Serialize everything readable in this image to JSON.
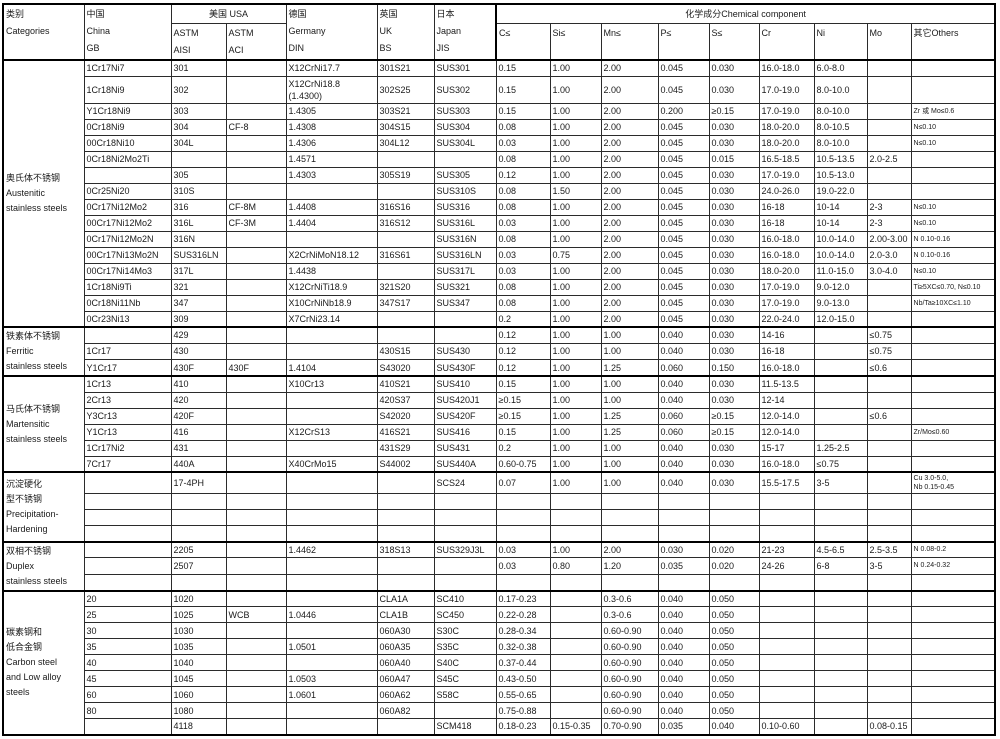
{
  "header": {
    "category": "类别\nCategories",
    "china": "中国\nChina\nGB",
    "usa": "美国 USA",
    "usa_sub": [
      "ASTM\nAISI",
      "ASTM\nACI"
    ],
    "germany": "德国\nGermany\nDIN",
    "uk": "英国\nUK\nBS",
    "japan": "日本\nJapan\nJIS",
    "chem_group": "化学成分Chemical component",
    "chem_cols": [
      "C≤",
      "Si≤",
      "Mn≤",
      "P≤",
      "S≤",
      "Cr",
      "Ni",
      "Mo",
      "其它Others"
    ]
  },
  "groups": [
    {
      "category": [
        "奥氏体不锈钢",
        "Austenitic",
        "stainless steels"
      ],
      "rows": [
        [
          "1Cr17Ni7",
          "301",
          "",
          "X12CrNi17.7",
          "301S21",
          "SUS301",
          "0.15",
          "1.00",
          "2.00",
          "0.045",
          "0.030",
          "16.0-18.0",
          "6.0-8.0",
          "",
          ""
        ],
        [
          "1Cr18Ni9",
          "302",
          "",
          "X12CrNi18.8\n(1.4300)",
          "302S25",
          "SUS302",
          "0.15",
          "1.00",
          "2.00",
          "0.045",
          "0.030",
          "17.0-19.0",
          "8.0-10.0",
          "",
          ""
        ],
        [
          "Y1Cr18Ni9",
          "303",
          "",
          "1.4305",
          "303S21",
          "SUS303",
          "0.15",
          "1.00",
          "2.00",
          "0.200",
          "≥0.15",
          "17.0-19.0",
          "8.0-10.0",
          "",
          "Zr 或 Mo≤0.6"
        ],
        [
          "0Cr18Ni9",
          "304",
          "CF-8",
          "1.4308",
          "304S15",
          "SUS304",
          "0.08",
          "1.00",
          "2.00",
          "0.045",
          "0.030",
          "18.0-20.0",
          "8.0-10.5",
          "",
          "N≤0.10"
        ],
        [
          "00Cr18Ni10",
          "304L",
          "",
          "1.4306",
          "304L12",
          "SUS304L",
          "0.03",
          "1.00",
          "2.00",
          "0.045",
          "0.030",
          "18.0-20.0",
          "8.0-10.0",
          "",
          "N≤0.10"
        ],
        [
          "0Cr18Ni2Mo2Ti",
          "",
          "",
          "1.4571",
          "",
          "",
          "0.08",
          "1.00",
          "2.00",
          "0.045",
          "0.015",
          "16.5-18.5",
          "10.5-13.5",
          "2.0-2.5",
          ""
        ],
        [
          "",
          "305",
          "",
          "1.4303",
          "305S19",
          "SUS305",
          "0.12",
          "1.00",
          "2.00",
          "0.045",
          "0.030",
          "17.0-19.0",
          "10.5-13.0",
          "",
          ""
        ],
        [
          "0Cr25Ni20",
          "310S",
          "",
          "",
          "",
          "SUS310S",
          "0.08",
          "1.50",
          "2.00",
          "0.045",
          "0.030",
          "24.0-26.0",
          "19.0-22.0",
          "",
          ""
        ],
        [
          "0Cr17Ni12Mo2",
          "316",
          "CF-8M",
          "1.4408",
          "316S16",
          "SUS316",
          "0.08",
          "1.00",
          "2.00",
          "0.045",
          "0.030",
          "16-18",
          "10-14",
          "2-3",
          "N≤0.10"
        ],
        [
          "00Cr17Ni12Mo2",
          "316L",
          "CF-3M",
          "1.4404",
          "316S12",
          "SUS316L",
          "0.03",
          "1.00",
          "2.00",
          "0.045",
          "0.030",
          "16-18",
          "10-14",
          "2-3",
          "N≤0.10"
        ],
        [
          "0Cr17Ni12Mo2N",
          "316N",
          "",
          "",
          "",
          "SUS316N",
          "0.08",
          "1.00",
          "2.00",
          "0.045",
          "0.030",
          "16.0-18.0",
          "10.0-14.0",
          "2.00-3.00",
          "N 0.10-0.16"
        ],
        [
          "00Cr17Ni13Mo2N",
          "SUS316LN",
          "",
          "X2CrNiMoN18.12",
          "316S61",
          "SUS316LN",
          "0.03",
          "0.75",
          "2.00",
          "0.045",
          "0.030",
          "16.0-18.0",
          "10.0-14.0",
          "2.0-3.0",
          "N 0.10-0.16"
        ],
        [
          "00Cr17Ni14Mo3",
          "317L",
          "",
          "1.4438",
          "",
          "SUS317L",
          "0.03",
          "1.00",
          "2.00",
          "0.045",
          "0.030",
          "18.0-20.0",
          "11.0-15.0",
          "3.0-4.0",
          "N≤0.10"
        ],
        [
          "1Cr18Ni9Ti",
          "321",
          "",
          "X12CrNiTi18.9",
          "321S20",
          "SUS321",
          "0.08",
          "1.00",
          "2.00",
          "0.045",
          "0.030",
          "17.0-19.0",
          "9.0-12.0",
          "",
          "Ti≥5XC≤0.70, N≤0.10"
        ],
        [
          "0Cr18Ni11Nb",
          "347",
          "",
          "X10CrNiNb18.9",
          "347S17",
          "SUS347",
          "0.08",
          "1.00",
          "2.00",
          "0.045",
          "0.030",
          "17.0-19.0",
          "9.0-13.0",
          "",
          "Nb/Ta≥10XC≤1.10"
        ],
        [
          "0Cr23Ni13",
          "309",
          "",
          "X7CrNi23.14",
          "",
          "",
          "0.2",
          "1.00",
          "2.00",
          "0.045",
          "0.030",
          "22.0-24.0",
          "12.0-15.0",
          "",
          ""
        ]
      ]
    },
    {
      "category": [
        "铁素体不锈钢",
        "Ferritic",
        "stainless steels"
      ],
      "rows": [
        [
          "",
          "429",
          "",
          "",
          "",
          "",
          "0.12",
          "1.00",
          "1.00",
          "0.040",
          "0.030",
          "14-16",
          "",
          "≤0.75",
          ""
        ],
        [
          "1Cr17",
          "430",
          "",
          "",
          "430S15",
          "SUS430",
          "0.12",
          "1.00",
          "1.00",
          "0.040",
          "0.030",
          "16-18",
          "",
          "≤0.75",
          ""
        ],
        [
          "Y1Cr17",
          "430F",
          "430F",
          "1.4104",
          "S43020",
          "SUS430F",
          "0.12",
          "1.00",
          "1.25",
          "0.060",
          "0.150",
          "16.0-18.0",
          "",
          "≤0.6",
          ""
        ]
      ]
    },
    {
      "category": [
        "马氏体不锈钢",
        "Martensitic",
        "stainless steels"
      ],
      "rows": [
        [
          "1Cr13",
          "410",
          "",
          "X10Cr13",
          "410S21",
          "SUS410",
          "0.15",
          "1.00",
          "1.00",
          "0.040",
          "0.030",
          "11.5-13.5",
          "",
          "",
          ""
        ],
        [
          "2Cr13",
          "420",
          "",
          "",
          "420S37",
          "SUS420J1",
          "≥0.15",
          "1.00",
          "1.00",
          "0.040",
          "0.030",
          "12-14",
          "",
          "",
          ""
        ],
        [
          "Y3Cr13",
          "420F",
          "",
          "",
          "S42020",
          "SUS420F",
          "≥0.15",
          "1.00",
          "1.25",
          "0.060",
          "≥0.15",
          "12.0-14.0",
          "",
          "≤0.6",
          ""
        ],
        [
          "Y1Cr13",
          "416",
          "",
          "X12CrS13",
          "416S21",
          "SUS416",
          "0.15",
          "1.00",
          "1.25",
          "0.060",
          "≥0.15",
          "12.0-14.0",
          "",
          "",
          "Zr/Mo≤0.60"
        ],
        [
          "1Cr17Ni2",
          "431",
          "",
          "",
          "431S29",
          "SUS431",
          "0.2",
          "1.00",
          "1.00",
          "0.040",
          "0.030",
          "15-17",
          "1.25-2.5",
          "",
          ""
        ],
        [
          "7Cr17",
          "440A",
          "",
          "X40CrMo15",
          "S44002",
          "SUS440A",
          "0.60-0.75",
          "1.00",
          "1.00",
          "0.040",
          "0.030",
          "16.0-18.0",
          "≤0.75",
          "",
          ""
        ]
      ]
    },
    {
      "category": [
        "沉淀硬化",
        "型不锈钢",
        "Precipitation-",
        "Hardening"
      ],
      "rows": [
        [
          "",
          "17-4PH",
          "",
          "",
          "",
          "SCS24",
          "0.07",
          "1.00",
          "1.00",
          "0.040",
          "0.030",
          "15.5-17.5",
          "3-5",
          "",
          "Cu 3.0-5.0,\nNb 0.15-0.45"
        ],
        [
          "",
          "",
          "",
          "",
          "",
          "",
          "",
          "",
          "",
          "",
          "",
          "",
          "",
          "",
          ""
        ],
        [
          "",
          "",
          "",
          "",
          "",
          "",
          "",
          "",
          "",
          "",
          "",
          "",
          "",
          "",
          ""
        ],
        [
          "",
          "",
          "",
          "",
          "",
          "",
          "",
          "",
          "",
          "",
          "",
          "",
          "",
          "",
          ""
        ]
      ]
    },
    {
      "category": [
        "双相不锈钢",
        "Duplex",
        "stainless steels"
      ],
      "rows": [
        [
          "",
          "2205",
          "",
          "1.4462",
          "318S13",
          "SUS329J3L",
          "0.03",
          "1.00",
          "2.00",
          "0.030",
          "0.020",
          "21-23",
          "4.5-6.5",
          "2.5-3.5",
          "N 0.08-0.2"
        ],
        [
          "",
          "2507",
          "",
          "",
          "",
          "",
          "0.03",
          "0.80",
          "1.20",
          "0.035",
          "0.020",
          "24-26",
          "6-8",
          "3-5",
          "N 0.24-0.32"
        ],
        [
          "",
          "",
          "",
          "",
          "",
          "",
          "",
          "",
          "",
          "",
          "",
          "",
          "",
          "",
          ""
        ]
      ]
    },
    {
      "category": [
        "碳素钢和",
        "低合金钢",
        "Carbon steel",
        "and Low alloy",
        "steels"
      ],
      "rows": [
        [
          "20",
          "1020",
          "",
          "",
          "CLA1A",
          "SC410",
          "0.17-0.23",
          "",
          "0.3-0.6",
          "0.040",
          "0.050",
          "",
          "",
          "",
          ""
        ],
        [
          "25",
          "1025",
          "WCB",
          "1.0446",
          "CLA1B",
          "SC450",
          "0.22-0.28",
          "",
          "0.3-0.6",
          "0.040",
          "0.050",
          "",
          "",
          "",
          ""
        ],
        [
          "30",
          "1030",
          "",
          "",
          "060A30",
          "S30C",
          "0.28-0.34",
          "",
          "0.60-0.90",
          "0.040",
          "0.050",
          "",
          "",
          "",
          ""
        ],
        [
          "35",
          "1035",
          "",
          "1.0501",
          "060A35",
          "S35C",
          "0.32-0.38",
          "",
          "0.60-0.90",
          "0.040",
          "0.050",
          "",
          "",
          "",
          ""
        ],
        [
          "40",
          "1040",
          "",
          "",
          "060A40",
          "S40C",
          "0.37-0.44",
          "",
          "0.60-0.90",
          "0.040",
          "0.050",
          "",
          "",
          "",
          ""
        ],
        [
          "45",
          "1045",
          "",
          "1.0503",
          "060A47",
          "S45C",
          "0.43-0.50",
          "",
          "0.60-0.90",
          "0.040",
          "0.050",
          "",
          "",
          "",
          ""
        ],
        [
          "60",
          "1060",
          "",
          "1.0601",
          "060A62",
          "S58C",
          "0.55-0.65",
          "",
          "0.60-0.90",
          "0.040",
          "0.050",
          "",
          "",
          "",
          ""
        ],
        [
          "80",
          "1080",
          "",
          "",
          "060A82",
          "",
          "0.75-0.88",
          "",
          "0.60-0.90",
          "0.040",
          "0.050",
          "",
          "",
          "",
          ""
        ],
        [
          "",
          "4118",
          "",
          "",
          "",
          "SCM418",
          "0.18-0.23",
          "0.15-0.35",
          "0.70-0.90",
          "0.035",
          "0.040",
          "0.10-0.60",
          "",
          "0.08-0.15",
          ""
        ]
      ]
    }
  ]
}
